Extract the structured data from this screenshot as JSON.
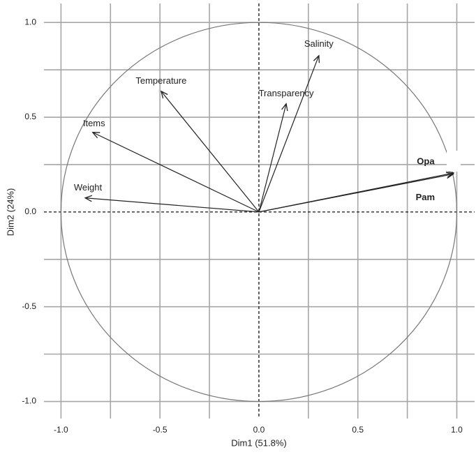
{
  "chart_data": {
    "type": "vector",
    "xlabel": "Dim1 (51.8%)",
    "ylabel": "Dim2 (24%)",
    "xlim": [
      -1.086,
      1.09
    ],
    "ylim": [
      -1.09,
      1.1
    ],
    "xticks": [
      {
        "value": -1,
        "label": "-1.0"
      },
      -0.5,
      {
        "value": 0,
        "label": "0.0"
      },
      0.5,
      {
        "value": 1,
        "label": "1.0"
      }
    ],
    "yticks": [
      {
        "value": -1,
        "label": "-1.0"
      },
      -0.5,
      {
        "value": 0,
        "label": "0.0"
      },
      0.5,
      {
        "value": 1,
        "label": "1.0"
      }
    ],
    "grid": true,
    "circle": 1,
    "color": "#222222",
    "series": [
      {
        "name": "Salinity",
        "x": 0.303,
        "y": 0.825
      },
      {
        "name": "Transparency",
        "x": 0.138,
        "y": 0.571
      },
      {
        "name": "Temperature",
        "x": -0.494,
        "y": 0.637
      },
      {
        "name": "Items",
        "x": -0.84,
        "y": 0.42
      },
      {
        "name": "Weight",
        "x": -0.878,
        "y": 0.074
      },
      {
        "name": "Opa",
        "x": 0.984,
        "y": 0.206
      },
      {
        "name": "Pam",
        "x": 0.982,
        "y": 0.2
      }
    ]
  }
}
